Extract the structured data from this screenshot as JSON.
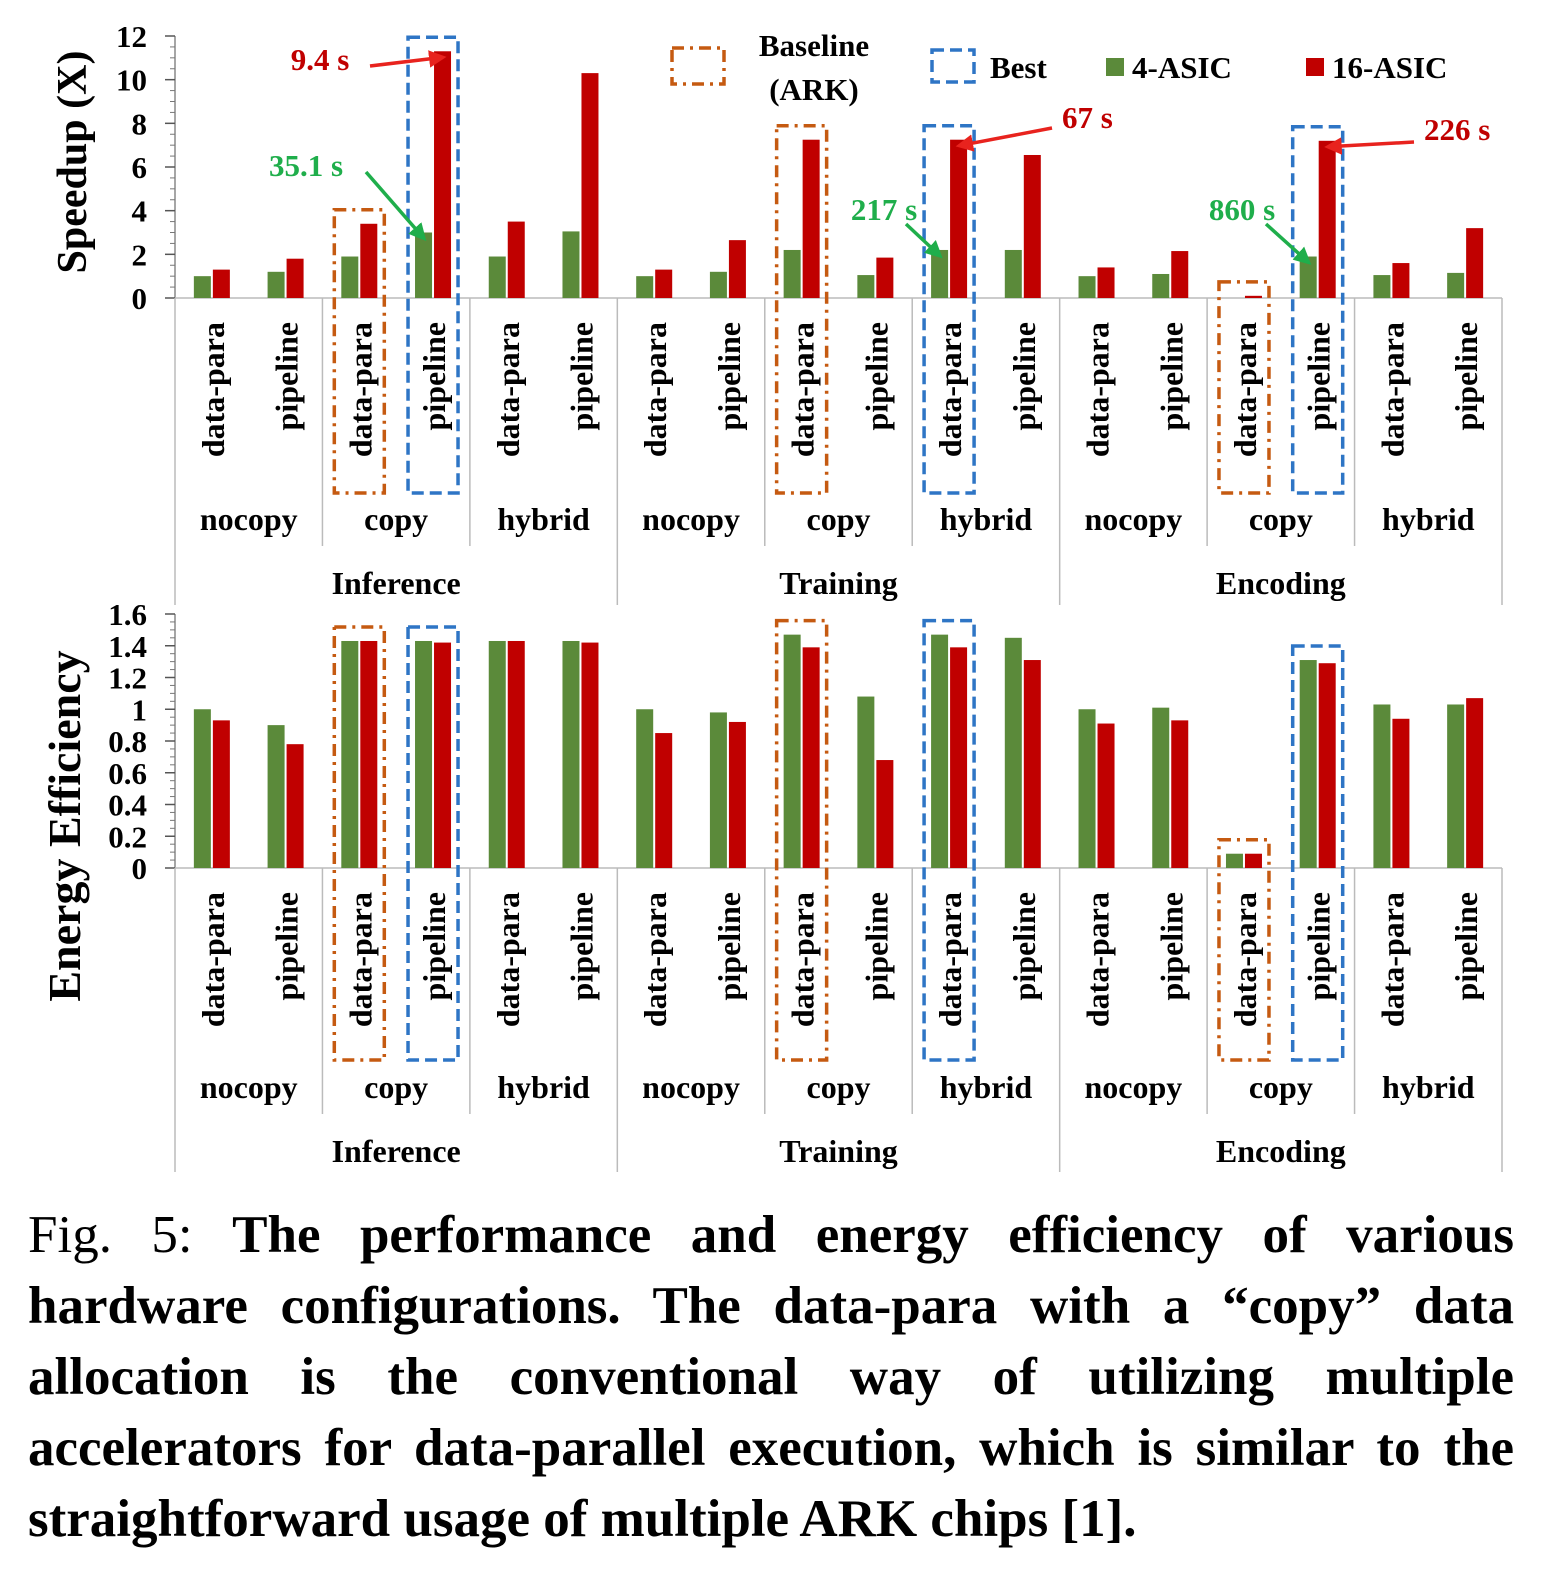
{
  "colors": {
    "asic4": "#5b8a3a",
    "asic16": "#c00000",
    "baseline_box": "#c55a11",
    "best_box": "#2e75c5",
    "note_red": "#e8231e",
    "note_green": "#1fae4b"
  },
  "legend": {
    "baseline_line1": "Baseline",
    "baseline_line2": "(ARK)",
    "best": "Best",
    "asic4": "4-ASIC",
    "asic16": "16-ASIC"
  },
  "chart_data": [
    {
      "type": "bar",
      "ylabel": "Speedup (X)",
      "ylim": [
        0,
        12
      ],
      "yticks": [
        "0",
        "2",
        "4",
        "6",
        "8",
        "10",
        "12"
      ],
      "categories": [
        "Inference/nocopy/data-para",
        "Inference/nocopy/pipeline",
        "Inference/copy/data-para",
        "Inference/copy/pipeline",
        "Inference/hybrid/data-para",
        "Inference/hybrid/pipeline",
        "Training/nocopy/data-para",
        "Training/nocopy/pipeline",
        "Training/copy/data-para",
        "Training/copy/pipeline",
        "Training/hybrid/data-para",
        "Training/hybrid/pipeline",
        "Encoding/nocopy/data-para",
        "Encoding/nocopy/pipeline",
        "Encoding/copy/data-para",
        "Encoding/copy/pipeline",
        "Encoding/hybrid/data-para",
        "Encoding/hybrid/pipeline"
      ],
      "series": [
        {
          "name": "4-ASIC",
          "values": [
            1.0,
            1.2,
            1.9,
            3.0,
            1.9,
            3.05,
            1.0,
            1.2,
            2.2,
            1.05,
            2.2,
            2.2,
            1.0,
            1.1,
            0.0,
            1.9,
            1.05,
            1.15
          ]
        },
        {
          "name": "16-ASIC",
          "values": [
            1.3,
            1.8,
            3.4,
            11.3,
            3.5,
            10.3,
            1.3,
            2.65,
            7.25,
            1.85,
            7.25,
            6.55,
            1.4,
            2.15,
            0.1,
            7.2,
            1.6,
            3.2
          ]
        }
      ],
      "annotations": [
        {
          "text": "9.4 s",
          "target": "Inference/copy/pipeline",
          "series": "16-ASIC"
        },
        {
          "text": "35.1 s",
          "target": "Inference/copy/pipeline",
          "series": "4-ASIC"
        },
        {
          "text": "67 s",
          "target": "Training/hybrid/data-para",
          "series": "16-ASIC"
        },
        {
          "text": "217 s",
          "target": "Training/hybrid/data-para",
          "series": "4-ASIC"
        },
        {
          "text": "226 s",
          "target": "Encoding/copy/pipeline",
          "series": "16-ASIC"
        },
        {
          "text": "860 s",
          "target": "Encoding/copy/pipeline",
          "series": "4-ASIC"
        }
      ],
      "baseline_boxes": [
        "Inference/copy/data-para",
        "Training/copy/data-para",
        "Encoding/copy/data-para"
      ],
      "best_boxes": [
        "Inference/copy/pipeline",
        "Training/hybrid/data-para",
        "Encoding/copy/pipeline"
      ]
    },
    {
      "type": "bar",
      "ylabel": "Energy Efficiency",
      "ylim": [
        0,
        1.6
      ],
      "yticks": [
        "0",
        "0.2",
        "0.4",
        "0.6",
        "0.8",
        "1",
        "1.2",
        "1.4",
        "1.6"
      ],
      "categories": [
        "Inference/nocopy/data-para",
        "Inference/nocopy/pipeline",
        "Inference/copy/data-para",
        "Inference/copy/pipeline",
        "Inference/hybrid/data-para",
        "Inference/hybrid/pipeline",
        "Training/nocopy/data-para",
        "Training/nocopy/pipeline",
        "Training/copy/data-para",
        "Training/copy/pipeline",
        "Training/hybrid/data-para",
        "Training/hybrid/pipeline",
        "Encoding/nocopy/data-para",
        "Encoding/nocopy/pipeline",
        "Encoding/copy/data-para",
        "Encoding/copy/pipeline",
        "Encoding/hybrid/data-para",
        "Encoding/hybrid/pipeline"
      ],
      "series": [
        {
          "name": "4-ASIC",
          "values": [
            1.0,
            0.9,
            1.43,
            1.43,
            1.43,
            1.43,
            1.0,
            0.98,
            1.47,
            1.08,
            1.47,
            1.45,
            1.0,
            1.01,
            0.09,
            1.31,
            1.03,
            1.03
          ]
        },
        {
          "name": "16-ASIC",
          "values": [
            0.93,
            0.78,
            1.43,
            1.42,
            1.43,
            1.42,
            0.85,
            0.92,
            1.39,
            0.68,
            1.39,
            1.31,
            0.91,
            0.93,
            0.09,
            1.29,
            0.94,
            1.07
          ]
        }
      ],
      "baseline_boxes": [
        "Inference/copy/data-para",
        "Training/copy/data-para",
        "Encoding/copy/data-para"
      ],
      "best_boxes": [
        "Inference/copy/pipeline",
        "Training/hybrid/data-para",
        "Encoding/copy/pipeline"
      ]
    }
  ],
  "axis_labels": {
    "groups": [
      "Inference",
      "Training",
      "Encoding"
    ],
    "subgroups": [
      "nocopy",
      "copy",
      "hybrid"
    ],
    "bars": [
      "data-para",
      "pipeline"
    ]
  },
  "caption": {
    "label": "Fig. 5: ",
    "text": "The performance and energy efficiency of various hardware configurations. The data-para with a “copy” data allocation is the conventional way of utilizing multiple accelerators for data-parallel execution, which is similar to the straightforward usage of multiple ARK chips [1]."
  }
}
